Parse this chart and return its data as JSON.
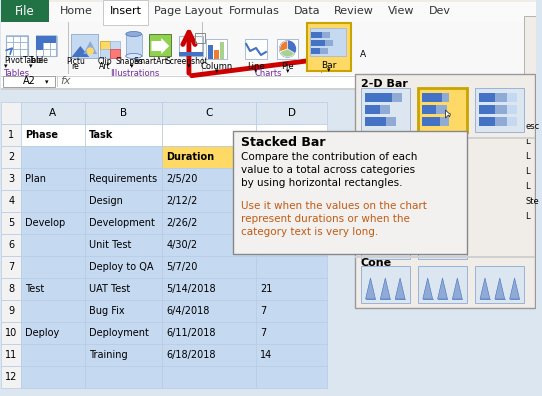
{
  "figsize": [
    5.42,
    3.96
  ],
  "dpi": 100,
  "bg_color": "#dce6f1",
  "spreadsheet_data": [
    [
      "Phase",
      "Task",
      "",
      ""
    ],
    [
      "",
      "",
      "Duration",
      ""
    ],
    [
      "Plan",
      "Requirements",
      "2/5/20",
      ""
    ],
    [
      "",
      "Design",
      "2/12/2",
      ""
    ],
    [
      "Develop",
      "Development",
      "2/26/2",
      ""
    ],
    [
      "",
      "Unit Test",
      "4/30/2",
      ""
    ],
    [
      "",
      "Deploy to QA",
      "5/7/20",
      ""
    ],
    [
      "Test",
      "UAT Test",
      "5/14/2018",
      "21"
    ],
    [
      "",
      "Bug Fix",
      "6/4/2018",
      "7"
    ],
    [
      "Deploy",
      "Deployment",
      "6/11/2018",
      "7"
    ],
    [
      "",
      "Training",
      "6/18/2018",
      "14"
    ],
    [
      "",
      "",
      "",
      ""
    ]
  ],
  "tooltip_title": "Stacked Bar",
  "tooltip_lines_black": [
    "Compare the contribution of each",
    "value to a total across categories",
    "by using horizontal rectangles."
  ],
  "tooltip_lines_orange": [
    "Use it when the values on the chart",
    "represent durations or when the",
    "category text is very long."
  ],
  "section_2dbar": "2-D Bar",
  "section_cone": "Cone",
  "blue_cell": "#c5d9f1",
  "yellow_cell": "#ffd966",
  "row_header_bg": "#f2f2f2",
  "col_header_bg": "#dce6f1",
  "grid_color": "#b8cce4",
  "tab_bg": "#d4d0c8",
  "ribbon_bg": "#f0f0ee",
  "active_tab_bg": "#ffffff",
  "file_tab_bg": "#217346",
  "panel_bg": "#f0f0ee",
  "panel_border": "#999999",
  "highlight_yellow": "#ffd966",
  "highlight_border": "#c8a400",
  "icon_blue_dark": "#4472c4",
  "icon_blue_light": "#8faad4",
  "icon_bg": "#dce6f1",
  "icon_border": "#9ab3d5",
  "arrow_color": "#cc0000",
  "tooltip_bg": "#f2f1f0",
  "tooltip_border": "#888888",
  "orange_text": "#c55a11"
}
